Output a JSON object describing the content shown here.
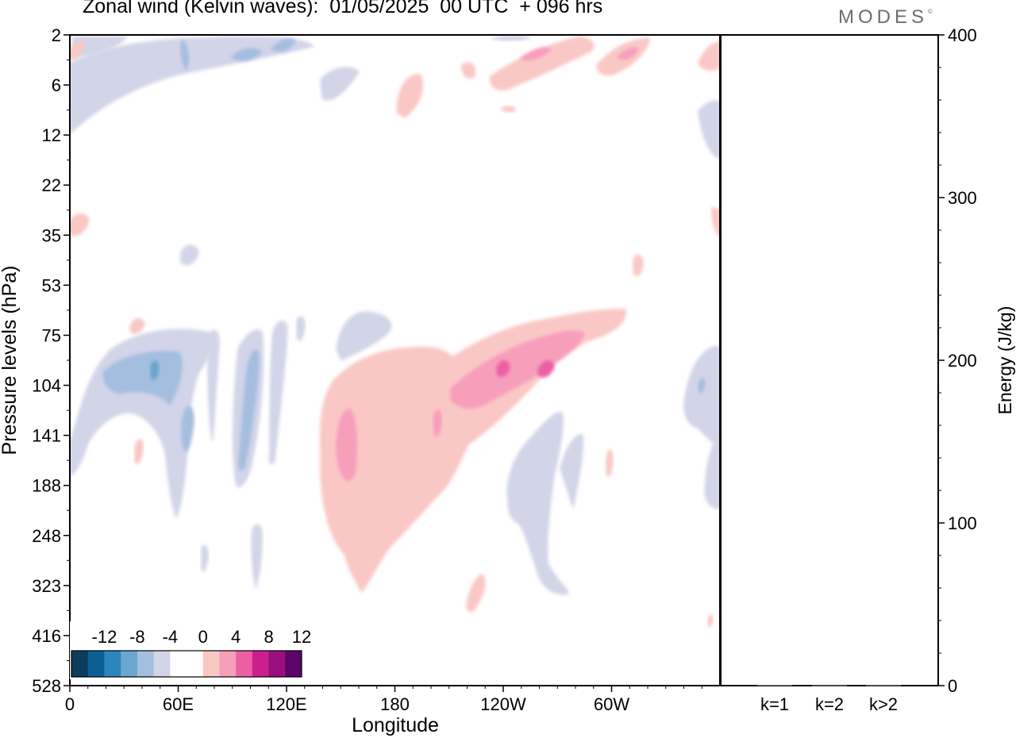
{
  "header": {
    "title": "Zonal wind (Kelvin waves):  01/05/2025  00 UTC  + 096 hrs",
    "logo": "MODES",
    "logo_mark": "©"
  },
  "chart_data": [
    {
      "type": "heatmap",
      "title": "Zonal wind (Kelvin waves):  01/05/2025  00 UTC  + 096 hrs",
      "xlabel": "Longitude",
      "ylabel": "Pressure levels (hPa)",
      "x_ticks": [
        "0",
        "60E",
        "120E",
        "180",
        "120W",
        "60W"
      ],
      "x_tick_lon": [
        0,
        60,
        120,
        180,
        240,
        300
      ],
      "xlim": [
        0,
        360
      ],
      "y_ticks": [
        "2",
        "6",
        "12",
        "22",
        "35",
        "53",
        "75",
        "104",
        "141",
        "188",
        "248",
        "323",
        "416",
        "528"
      ],
      "y_axis": "pressure levels, top to bottom",
      "colorbar": {
        "labels": [
          "-12",
          "-8",
          "-4",
          "0",
          "4",
          "8",
          "12"
        ],
        "colors": [
          "#0d3d5c",
          "#0c5f94",
          "#2b86be",
          "#6aa6cf",
          "#a4bedf",
          "#d2d4e8",
          "#ffffff",
          "#ffffff",
          "#f9c8c5",
          "#f79ebb",
          "#ec5fa4",
          "#cc1f8f",
          "#9a0f7e",
          "#5c0468"
        ]
      },
      "features": [
        {
          "sign": "negative",
          "peak": -8,
          "lon": [
            25,
            65
          ],
          "level": [
            75,
            141
          ]
        },
        {
          "sign": "negative",
          "peak": -8,
          "lon": [
            90,
            105
          ],
          "level": [
            104,
            248
          ]
        },
        {
          "sign": "negative",
          "peak": -4,
          "lon": [
            230,
            265
          ],
          "level": [
            141,
            323
          ]
        },
        {
          "sign": "negative",
          "peak": -8,
          "lon": [
            60,
            130
          ],
          "level": [
            2,
            6
          ]
        },
        {
          "sign": "negative",
          "peak": -4,
          "lon": [
            0,
            50
          ],
          "level": [
            6,
            12
          ]
        },
        {
          "sign": "positive",
          "peak": 8,
          "lon": [
            140,
            200
          ],
          "level": [
            104,
            323
          ]
        },
        {
          "sign": "positive",
          "peak": 8,
          "lon": [
            200,
            290
          ],
          "level": [
            75,
            141
          ]
        },
        {
          "sign": "positive",
          "peak": 8,
          "lon": [
            225,
            295
          ],
          "level": [
            2,
            6
          ]
        }
      ]
    },
    {
      "type": "bar",
      "ylabel": "Energy (J/kg)",
      "categories": [
        "k=1",
        "k=2",
        "k>2"
      ],
      "values": [
        0.5,
        0.3,
        0.4
      ],
      "ylim": [
        0,
        400
      ],
      "y_ticks": [
        "0",
        "100",
        "200",
        "300",
        "400"
      ]
    }
  ]
}
